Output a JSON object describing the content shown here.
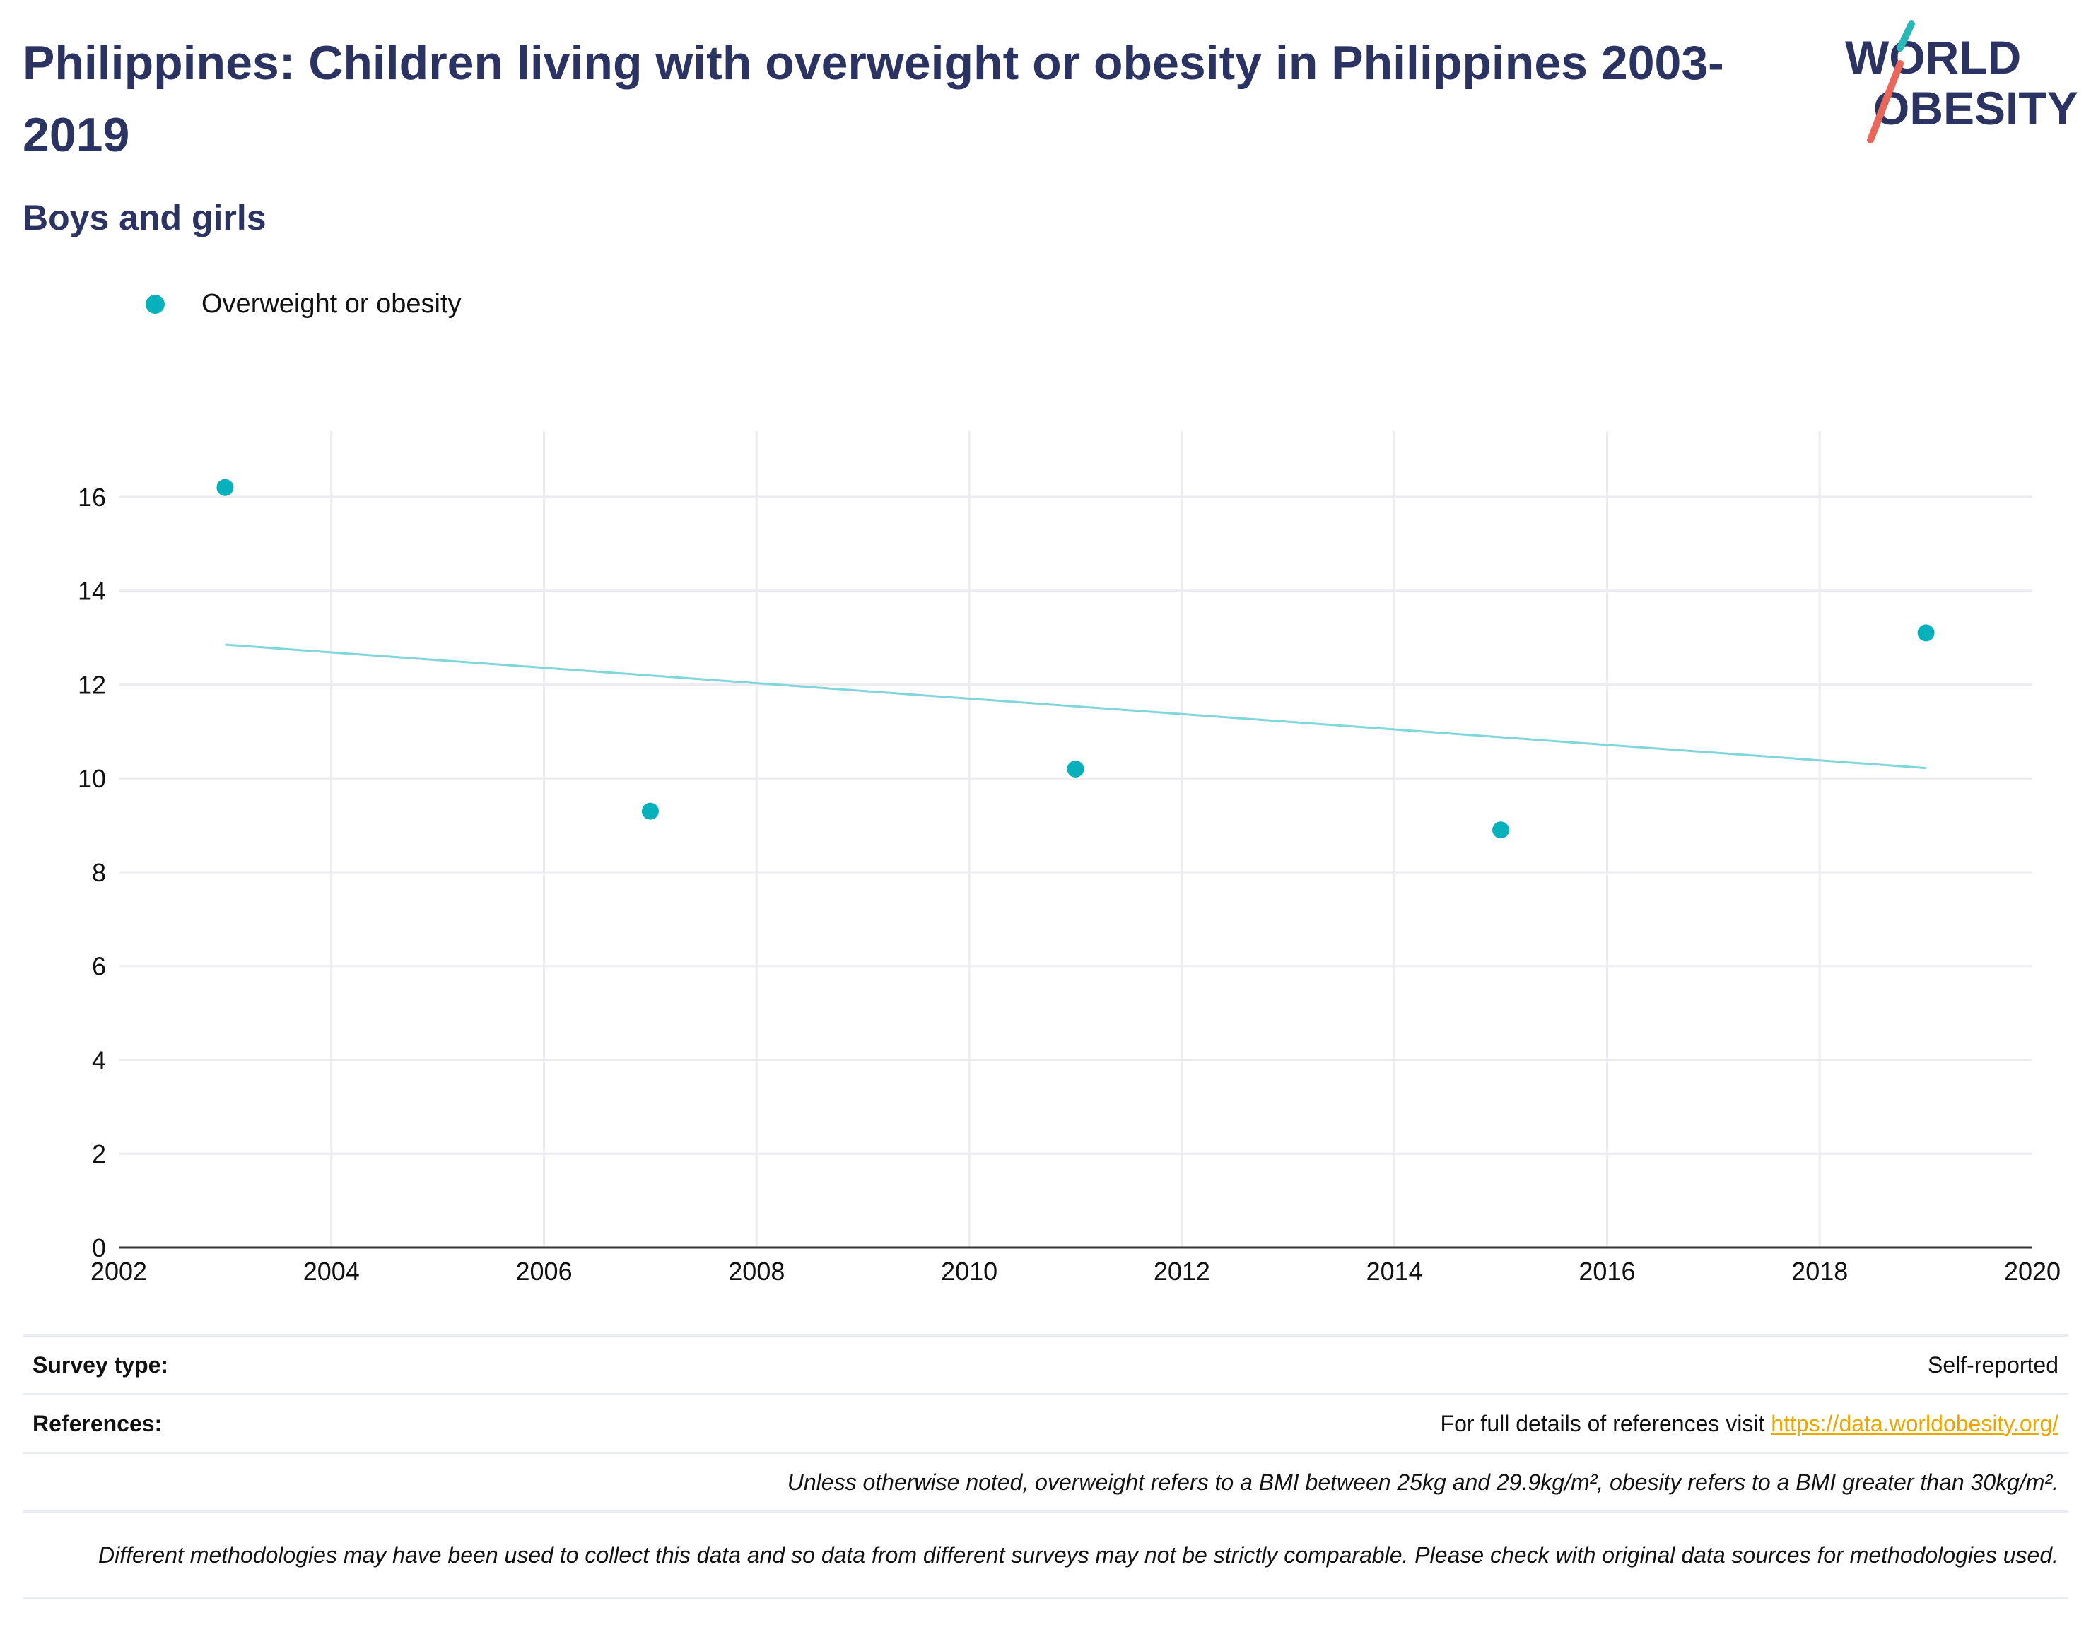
{
  "header": {
    "title": "Philippines: Children living with overweight or obesity in Philippines 2003-2019",
    "subtitle": "Boys and girls"
  },
  "logo": {
    "line1": "WORLD",
    "line2": "OBESITY",
    "colors": {
      "text": "#2b3362",
      "accent_top": "#2ab7b7",
      "accent_bottom": "#e8665a"
    }
  },
  "legend": {
    "items": [
      {
        "label": "Overweight or obesity",
        "color": "#06b1bb"
      }
    ]
  },
  "chart_data": {
    "type": "scatter",
    "series": [
      {
        "name": "Overweight or obesity",
        "color": "#06b1bb",
        "x": [
          2003,
          2007,
          2011,
          2015,
          2019
        ],
        "y": [
          16.2,
          9.3,
          10.2,
          8.9,
          13.1
        ]
      }
    ],
    "trendline": {
      "x": [
        2003,
        2019
      ],
      "y": [
        12.85,
        10.22
      ],
      "color": "#7fd6db"
    },
    "xlim": [
      2002,
      2020
    ],
    "ylim": [
      0,
      17.4
    ],
    "xticks": [
      2002,
      2004,
      2006,
      2008,
      2010,
      2012,
      2014,
      2016,
      2018,
      2020
    ],
    "yticks": [
      0,
      2,
      4,
      6,
      8,
      10,
      12,
      14,
      16
    ],
    "grid": true,
    "legend_position": "top-left"
  },
  "footer": {
    "survey_type_label": "Survey type:",
    "survey_type_value": "Self-reported",
    "references_label": "References:",
    "references_text": "For full details of references visit ",
    "references_link": "https://data.worldobesity.org/",
    "note_bmi": "Unless otherwise noted, overweight refers to a BMI between 25kg and 29.9kg/m², obesity refers to a BMI greater than 30kg/m².",
    "note_methods": "Different methodologies may have been used to collect this data and so data from different surveys may not be strictly comparable. Please check with original data sources for methodologies used."
  }
}
